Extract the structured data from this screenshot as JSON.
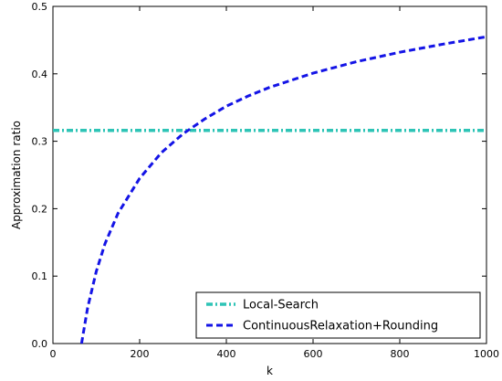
{
  "chart_data": {
    "type": "line",
    "xlabel": "k",
    "ylabel": "Approximation ratio",
    "xlim": [
      0,
      1000
    ],
    "ylim": [
      0,
      0.5
    ],
    "xticks": [
      0,
      200,
      400,
      600,
      800,
      1000
    ],
    "xtick_labels": [
      "0",
      "200",
      "400",
      "600",
      "800",
      "1000"
    ],
    "yticks": [
      0.0,
      0.1,
      0.2,
      0.3,
      0.4,
      0.5
    ],
    "ytick_labels": [
      "0.0",
      "0.1",
      "0.2",
      "0.3",
      "0.4",
      "0.5"
    ],
    "grid": false,
    "legend_position": "lower-right",
    "series": [
      {
        "name": "Local-Search",
        "color": "#2ec4b6",
        "style": "dash-dot",
        "x": [
          0,
          1000
        ],
        "y": [
          0.316,
          0.316
        ]
      },
      {
        "name": "ContinuousRelaxation+Rounding",
        "color": "#1414e6",
        "style": "dashed",
        "x": [
          66,
          80,
          100,
          120,
          150,
          200,
          250,
          300,
          350,
          400,
          450,
          500,
          600,
          700,
          800,
          900,
          1000
        ],
        "y": [
          0.0,
          0.053,
          0.107,
          0.148,
          0.193,
          0.245,
          0.283,
          0.311,
          0.333,
          0.352,
          0.367,
          0.38,
          0.401,
          0.418,
          0.432,
          0.444,
          0.455
        ]
      }
    ]
  }
}
